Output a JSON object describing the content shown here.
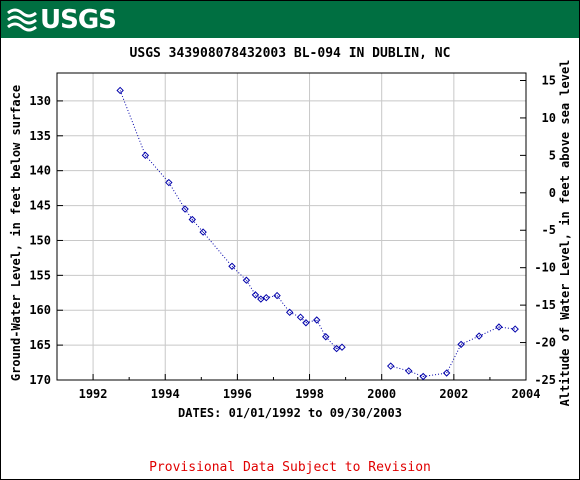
{
  "brand": {
    "logo_text": "USGS",
    "banner_color": "#006f41"
  },
  "footer": {
    "text": "Provisional Data Subject to Revision",
    "color": "#e00000"
  },
  "chart_data": {
    "type": "scatter",
    "title": "USGS 343908078432003 BL-094 IN DUBLIN, NC",
    "xlabel": "DATES: 01/01/1992 to 09/30/2003",
    "ylabel_left": "Ground-Water Level, in feet below surface",
    "ylabel_right": "Altitude of Water Level, in feet above sea level",
    "xlim": [
      1991,
      2004
    ],
    "ylim_left": [
      170,
      126
    ],
    "ylim_right": [
      -25,
      16
    ],
    "x_ticks": [
      1992,
      1994,
      1996,
      1998,
      2000,
      2002,
      2004
    ],
    "y_ticks_left": [
      130,
      135,
      140,
      145,
      150,
      155,
      160,
      165,
      170
    ],
    "y_ticks_right": [
      15,
      10,
      5,
      0,
      -5,
      -10,
      -15,
      -20,
      -25
    ],
    "grid": true,
    "series_color": "#0000aa",
    "series": [
      {
        "values": [
          [
            1992.75,
            128.5
          ],
          [
            1993.45,
            137.8
          ],
          [
            1994.1,
            141.7
          ],
          [
            1994.55,
            145.5
          ],
          [
            1994.75,
            147.0
          ],
          [
            1995.05,
            148.8
          ],
          [
            1995.85,
            153.7
          ],
          [
            1996.25,
            155.7
          ],
          [
            1996.5,
            157.8
          ],
          [
            1996.65,
            158.4
          ],
          [
            1996.8,
            158.2
          ],
          [
            1997.1,
            157.9
          ],
          [
            1997.45,
            160.3
          ],
          [
            1997.75,
            161.0
          ],
          [
            1997.9,
            161.8
          ],
          [
            1998.2,
            161.4
          ],
          [
            1998.45,
            163.8
          ],
          [
            1998.75,
            165.5
          ],
          [
            1998.9,
            165.3
          ],
          [
            2000.25,
            168.0
          ],
          [
            2000.75,
            168.7
          ],
          [
            2001.15,
            169.5
          ],
          [
            2001.8,
            169.0
          ],
          [
            2002.2,
            164.9
          ],
          [
            2002.7,
            163.7
          ],
          [
            2003.25,
            162.4
          ],
          [
            2003.7,
            162.7
          ]
        ]
      }
    ]
  }
}
